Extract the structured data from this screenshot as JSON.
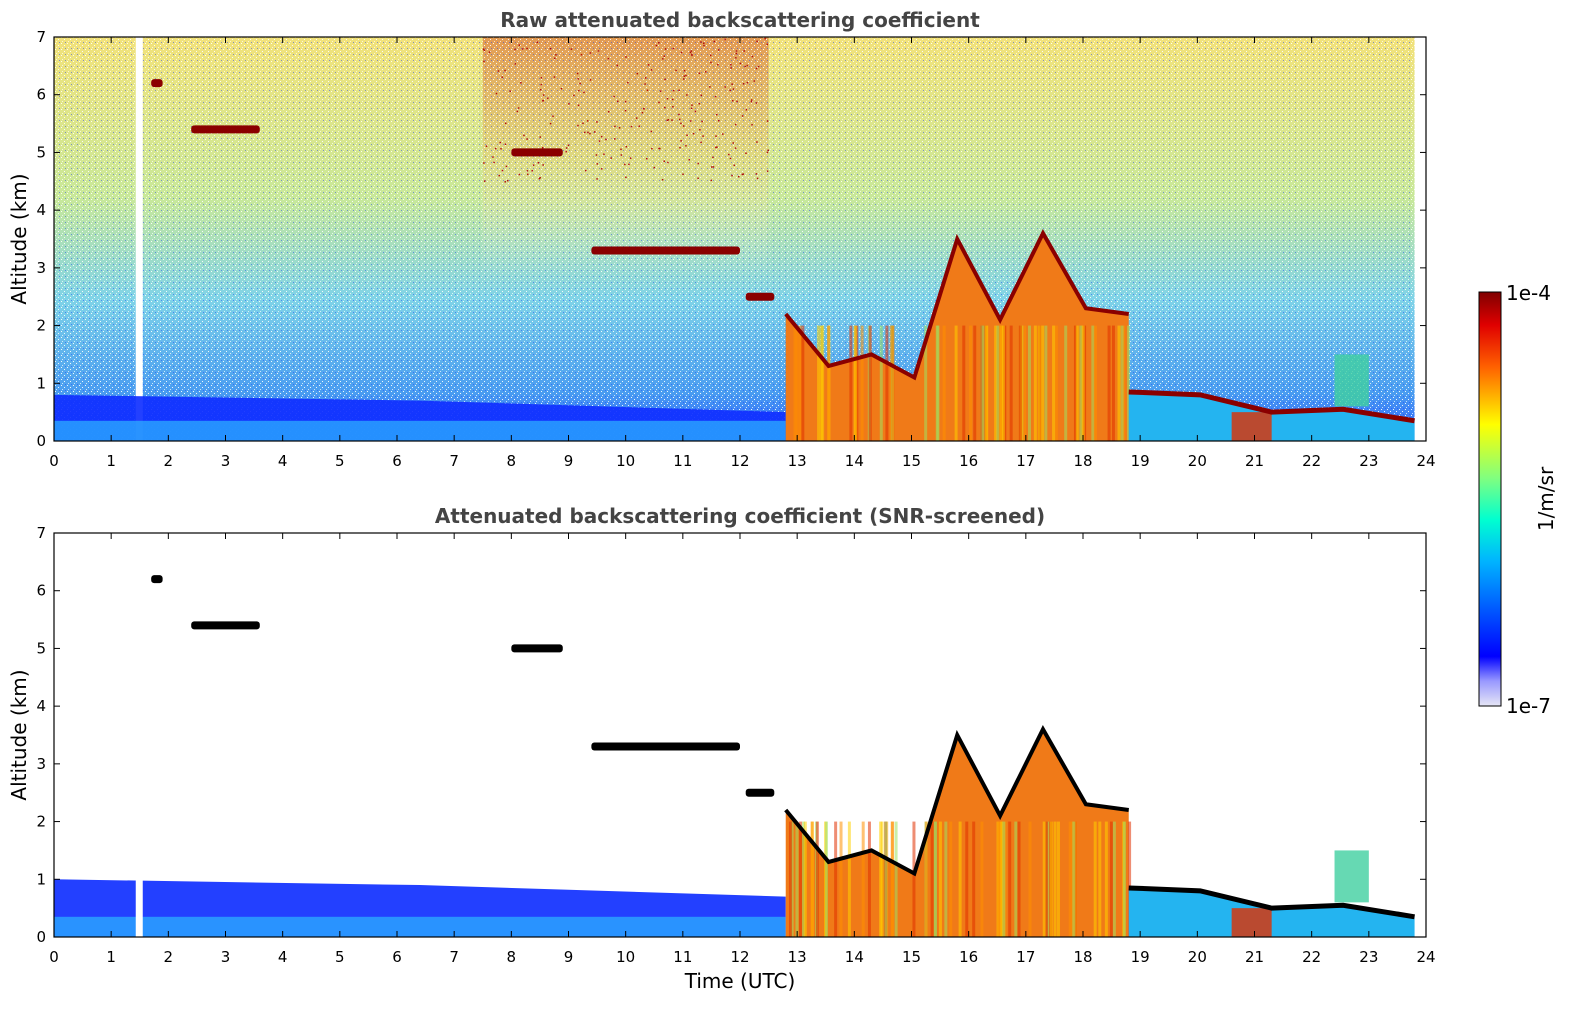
{
  "chart_data": [
    {
      "type": "heatmap",
      "title": "Raw attenuated backscattering coefficient",
      "xlabel": "",
      "ylabel": "Altitude (km)",
      "xlim": [
        0,
        24
      ],
      "ylim": [
        0,
        7
      ],
      "x_ticks": [
        "0",
        "1",
        "2",
        "3",
        "4",
        "5",
        "6",
        "7",
        "8",
        "9",
        "10",
        "11",
        "12",
        "13",
        "14",
        "15",
        "16",
        "17",
        "18",
        "19",
        "20",
        "21",
        "22",
        "23",
        "24"
      ],
      "y_ticks": [
        "0",
        "1",
        "2",
        "3",
        "4",
        "5",
        "6",
        "7"
      ],
      "layers": [
        {
          "kind": "noise",
          "x_range": [
            0,
            23.8
          ],
          "y_range": [
            0,
            7
          ],
          "note_level": "sky"
        },
        {
          "kind": "aerosol",
          "x_range": [
            0,
            12.8
          ],
          "top_km": [
            0.8,
            0.7,
            0.5
          ]
        },
        {
          "kind": "cloud",
          "x_range": [
            1.7,
            1.9
          ],
          "y_km": 6.2
        },
        {
          "kind": "cloud",
          "x_range": [
            2.4,
            3.6
          ],
          "y_km": 5.4
        },
        {
          "kind": "cloud",
          "x_range": [
            8.0,
            8.9
          ],
          "y_km": 5.0
        },
        {
          "kind": "cloud",
          "x_range": [
            9.4,
            12.0
          ],
          "y_km": 3.3
        },
        {
          "kind": "cloud",
          "x_range": [
            12.1,
            12.6
          ],
          "y_km": 2.5
        },
        {
          "kind": "cloud_column",
          "x_range": [
            12.8,
            18.8
          ],
          "top_km": [
            2.2,
            1.3,
            1.5,
            1.1,
            3.5,
            2.1,
            3.6,
            2.3,
            2.2
          ]
        },
        {
          "kind": "boundary_layer",
          "x_range": [
            18.8,
            23.8
          ],
          "top_km": [
            0.85,
            0.8,
            0.5,
            0.55,
            0.35
          ]
        }
      ]
    },
    {
      "type": "heatmap",
      "title": "Attenuated backscattering coefficient (SNR-screened)",
      "xlabel": "Time (UTC)",
      "ylabel": "Altitude (km)",
      "xlim": [
        0,
        24
      ],
      "ylim": [
        0,
        7
      ],
      "x_ticks": [
        "0",
        "1",
        "2",
        "3",
        "4",
        "5",
        "6",
        "7",
        "8",
        "9",
        "10",
        "11",
        "12",
        "13",
        "14",
        "15",
        "16",
        "17",
        "18",
        "19",
        "20",
        "21",
        "22",
        "23",
        "24"
      ],
      "y_ticks": [
        "0",
        "1",
        "2",
        "3",
        "4",
        "5",
        "6",
        "7"
      ],
      "layers": [
        {
          "kind": "aerosol",
          "x_range": [
            0,
            12.8
          ],
          "top_km": [
            1.0,
            0.9,
            0.7
          ]
        },
        {
          "kind": "cloud",
          "x_range": [
            1.7,
            1.9
          ],
          "y_km": 6.2
        },
        {
          "kind": "cloud",
          "x_range": [
            2.4,
            3.6
          ],
          "y_km": 5.4
        },
        {
          "kind": "cloud",
          "x_range": [
            8.0,
            8.9
          ],
          "y_km": 5.0
        },
        {
          "kind": "cloud",
          "x_range": [
            9.4,
            12.0
          ],
          "y_km": 3.3
        },
        {
          "kind": "cloud",
          "x_range": [
            12.1,
            12.6
          ],
          "y_km": 2.5
        },
        {
          "kind": "cloud_column",
          "x_range": [
            12.8,
            18.8
          ],
          "top_km": [
            2.2,
            1.3,
            1.5,
            1.1,
            3.5,
            2.1,
            3.6,
            2.3,
            2.2
          ]
        },
        {
          "kind": "boundary_layer",
          "x_range": [
            18.8,
            23.8
          ],
          "top_km": [
            0.85,
            0.8,
            0.5,
            0.55,
            0.35
          ]
        }
      ]
    }
  ],
  "colorbar": {
    "label": "1/m/sr",
    "max_label": "1e-4",
    "min_label": "1e-7",
    "scale": "log",
    "colormap": "jet",
    "range": [
      1e-07,
      0.0001
    ]
  },
  "colors": {
    "title": "#444444",
    "low": "#0000ff",
    "high": "#800000",
    "cloud_top": "#000000"
  }
}
